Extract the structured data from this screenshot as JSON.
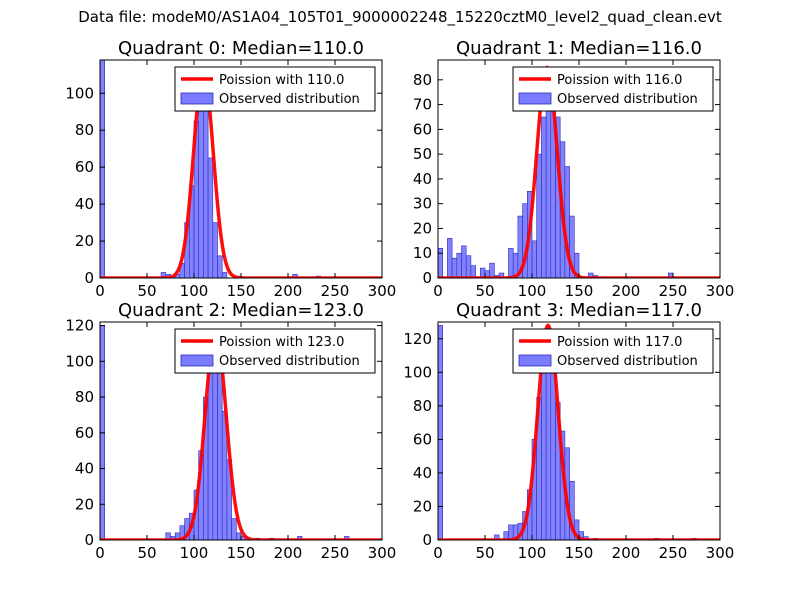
{
  "figure": {
    "suptitle": "Data file: modeM0/AS1A04_105T01_9000002248_15220cztM0_level2_quad_clean.evt"
  },
  "colors": {
    "poisson_line": "#ff0000",
    "hist_fill": "#7b7bff",
    "hist_edge": "#2b2bbf",
    "axes": "#000000"
  },
  "chart_data": [
    {
      "type": "bar",
      "title": "Quadrant 0: Median=110.0",
      "xlim": [
        0,
        300
      ],
      "ylim": [
        0,
        118
      ],
      "xticks": [
        0,
        50,
        100,
        150,
        200,
        250,
        300
      ],
      "yticks": [
        0,
        20,
        40,
        60,
        80,
        100
      ],
      "bin_width": 5,
      "bins": [
        [
          0,
          118
        ],
        [
          65,
          3
        ],
        [
          70,
          2
        ],
        [
          80,
          2
        ],
        [
          85,
          8
        ],
        [
          90,
          30
        ],
        [
          95,
          50
        ],
        [
          100,
          85
        ],
        [
          105,
          100
        ],
        [
          110,
          92
        ],
        [
          115,
          65
        ],
        [
          120,
          30
        ],
        [
          125,
          12
        ],
        [
          130,
          3
        ],
        [
          145,
          1
        ],
        [
          205,
          2
        ],
        [
          230,
          1
        ]
      ],
      "poisson_mean": 110.0,
      "poisson_peak": 112,
      "legend": {
        "location": "top-right",
        "line_label": "Poission with 110.0",
        "bar_label": "Observed distribution"
      }
    },
    {
      "type": "bar",
      "title": "Quadrant 1: Median=116.0",
      "xlim": [
        0,
        300
      ],
      "ylim": [
        0,
        88
      ],
      "xticks": [
        0,
        50,
        100,
        150,
        200,
        250,
        300
      ],
      "yticks": [
        0,
        10,
        20,
        30,
        40,
        50,
        60,
        70,
        80
      ],
      "bin_width": 5,
      "bins": [
        [
          0,
          12
        ],
        [
          10,
          16
        ],
        [
          15,
          8
        ],
        [
          20,
          10
        ],
        [
          25,
          13
        ],
        [
          30,
          9
        ],
        [
          35,
          5
        ],
        [
          45,
          4
        ],
        [
          50,
          3
        ],
        [
          55,
          6
        ],
        [
          60,
          1
        ],
        [
          65,
          2
        ],
        [
          75,
          12
        ],
        [
          80,
          10
        ],
        [
          85,
          25
        ],
        [
          90,
          30
        ],
        [
          95,
          35
        ],
        [
          100,
          15
        ],
        [
          105,
          50
        ],
        [
          110,
          65
        ],
        [
          115,
          75
        ],
        [
          120,
          83
        ],
        [
          125,
          65
        ],
        [
          130,
          55
        ],
        [
          135,
          45
        ],
        [
          140,
          25
        ],
        [
          145,
          10
        ],
        [
          160,
          2
        ],
        [
          165,
          1
        ],
        [
          245,
          2
        ]
      ],
      "poisson_mean": 116.0,
      "poisson_peak": 85,
      "legend": {
        "location": "top-right",
        "line_label": "Poission with 116.0",
        "bar_label": "Observed distribution"
      }
    },
    {
      "type": "bar",
      "title": "Quadrant 2: Median=123.0",
      "xlim": [
        0,
        300
      ],
      "ylim": [
        0,
        122
      ],
      "xticks": [
        0,
        50,
        100,
        150,
        200,
        250,
        300
      ],
      "yticks": [
        0,
        20,
        40,
        60,
        80,
        100,
        120
      ],
      "bin_width": 5,
      "bins": [
        [
          0,
          120
        ],
        [
          70,
          4
        ],
        [
          75,
          2
        ],
        [
          80,
          4
        ],
        [
          85,
          8
        ],
        [
          90,
          12
        ],
        [
          95,
          15
        ],
        [
          100,
          28
        ],
        [
          105,
          50
        ],
        [
          110,
          80
        ],
        [
          115,
          100
        ],
        [
          120,
          112
        ],
        [
          125,
          110
        ],
        [
          130,
          72
        ],
        [
          135,
          45
        ],
        [
          140,
          12
        ],
        [
          145,
          4
        ],
        [
          150,
          2
        ],
        [
          165,
          1
        ],
        [
          180,
          1
        ],
        [
          210,
          2
        ],
        [
          260,
          2
        ]
      ],
      "poisson_mean": 123.0,
      "poisson_peak": 117,
      "legend": {
        "location": "top-right",
        "line_label": "Poission with 123.0",
        "bar_label": "Observed distribution"
      }
    },
    {
      "type": "bar",
      "title": "Quadrant 3: Median=117.0",
      "xlim": [
        0,
        300
      ],
      "ylim": [
        0,
        130
      ],
      "xticks": [
        0,
        50,
        100,
        150,
        200,
        250,
        300
      ],
      "yticks": [
        0,
        20,
        40,
        60,
        80,
        100,
        120
      ],
      "bin_width": 5,
      "bins": [
        [
          0,
          128
        ],
        [
          60,
          3
        ],
        [
          70,
          5
        ],
        [
          75,
          9
        ],
        [
          80,
          9
        ],
        [
          85,
          10
        ],
        [
          90,
          17
        ],
        [
          95,
          30
        ],
        [
          100,
          60
        ],
        [
          105,
          85
        ],
        [
          110,
          100
        ],
        [
          115,
          115
        ],
        [
          120,
          125
        ],
        [
          125,
          82
        ],
        [
          130,
          65
        ],
        [
          135,
          55
        ],
        [
          140,
          35
        ],
        [
          145,
          12
        ],
        [
          150,
          5
        ],
        [
          155,
          2
        ],
        [
          165,
          1
        ],
        [
          230,
          1
        ],
        [
          270,
          1
        ]
      ],
      "poisson_mean": 117.0,
      "poisson_peak": 128,
      "legend": {
        "location": "top-right",
        "line_label": "Poission with 117.0",
        "bar_label": "Observed distribution"
      }
    }
  ]
}
